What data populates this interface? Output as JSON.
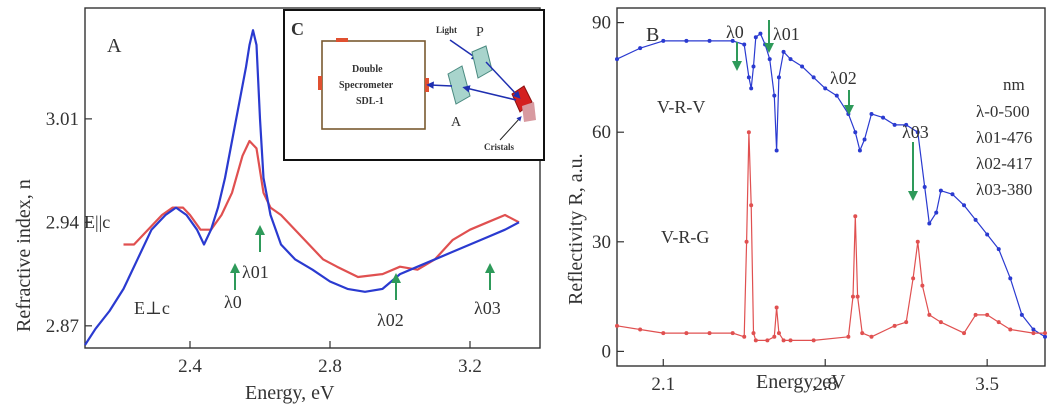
{
  "chart_data": [
    {
      "panel": "A",
      "type": "line",
      "xlabel": "Energy, eV",
      "ylabel": "Refractive index, n",
      "xlim": [
        2.1,
        3.4
      ],
      "ylim": [
        2.855,
        3.085
      ],
      "xticks": [
        "2.4",
        "2.8",
        "3.2"
      ],
      "yticks": [
        "2.87",
        "2.94",
        "3.01"
      ],
      "series": [
        {
          "name": "E||c",
          "color": "#e05050",
          "x": [
            2.21,
            2.24,
            2.28,
            2.32,
            2.35,
            2.38,
            2.4,
            2.43,
            2.46,
            2.49,
            2.52,
            2.55,
            2.57,
            2.59,
            2.6,
            2.61,
            2.63,
            2.66,
            2.7,
            2.74,
            2.78,
            2.82,
            2.88,
            2.95,
            3.0,
            3.05,
            3.1,
            3.15,
            3.2,
            3.25,
            3.3,
            3.34
          ],
          "y": [
            2.925,
            2.925,
            2.935,
            2.945,
            2.95,
            2.95,
            2.945,
            2.935,
            2.935,
            2.945,
            2.96,
            2.985,
            2.995,
            2.99,
            2.975,
            2.96,
            2.95,
            2.945,
            2.935,
            2.925,
            2.915,
            2.91,
            2.903,
            2.905,
            2.91,
            2.908,
            2.915,
            2.928,
            2.935,
            2.94,
            2.945,
            2.94
          ]
        },
        {
          "name": "E⊥c",
          "color": "#2a3ad0",
          "x": [
            2.1,
            2.13,
            2.17,
            2.21,
            2.25,
            2.29,
            2.33,
            2.36,
            2.39,
            2.42,
            2.44,
            2.46,
            2.48,
            2.5,
            2.52,
            2.54,
            2.56,
            2.57,
            2.58,
            2.59,
            2.6,
            2.61,
            2.63,
            2.66,
            2.7,
            2.75,
            2.8,
            2.85,
            2.9,
            2.95,
            3.0,
            3.05,
            3.1,
            3.15,
            3.2,
            3.25,
            3.3,
            3.34
          ],
          "y": [
            2.857,
            2.868,
            2.88,
            2.895,
            2.915,
            2.935,
            2.945,
            2.95,
            2.945,
            2.935,
            2.925,
            2.935,
            2.95,
            2.97,
            2.995,
            3.02,
            3.045,
            3.06,
            3.07,
            3.06,
            3.01,
            2.97,
            2.945,
            2.925,
            2.915,
            2.908,
            2.9,
            2.895,
            2.893,
            2.895,
            2.905,
            2.91,
            2.915,
            2.92,
            2.925,
            2.93,
            2.935,
            2.94
          ]
        }
      ],
      "labels": {
        "panel": "A",
        "epar": "E||c",
        "eperp": "E⊥c",
        "l0": "λ0",
        "l01": "λ01",
        "l02": "λ02",
        "l03": "λ03"
      }
    },
    {
      "panel": "B",
      "type": "line",
      "xlabel": "Energy, eV",
      "ylabel": "Reflectivity  R, a.u.",
      "xlim": [
        1.9,
        3.75
      ],
      "ylim": [
        -4,
        94
      ],
      "xticks": [
        "2.1",
        "2.8",
        "3.5"
      ],
      "yticks": [
        "0",
        "30",
        "60",
        "90"
      ],
      "series": [
        {
          "name": "V-R-V",
          "color": "#2a3ad0",
          "x": [
            1.9,
            2.0,
            2.1,
            2.2,
            2.3,
            2.4,
            2.45,
            2.47,
            2.48,
            2.49,
            2.5,
            2.52,
            2.54,
            2.56,
            2.58,
            2.59,
            2.6,
            2.62,
            2.65,
            2.7,
            2.75,
            2.8,
            2.85,
            2.9,
            2.93,
            2.95,
            2.97,
            3.0,
            3.05,
            3.1,
            3.15,
            3.2,
            3.23,
            3.25,
            3.28,
            3.3,
            3.35,
            3.4,
            3.45,
            3.5,
            3.55,
            3.6,
            3.65,
            3.7,
            3.75
          ],
          "y": [
            80,
            83,
            85,
            85,
            85,
            85,
            84,
            75,
            72,
            78,
            86,
            87,
            84,
            80,
            70,
            55,
            75,
            82,
            80,
            78,
            75,
            72,
            70,
            65,
            60,
            55,
            58,
            65,
            64,
            62,
            62,
            60,
            45,
            35,
            38,
            44,
            43,
            40,
            36,
            32,
            28,
            20,
            10,
            6,
            4
          ]
        },
        {
          "name": "V-R-G",
          "color": "#e05050",
          "x": [
            1.9,
            2.0,
            2.1,
            2.2,
            2.3,
            2.4,
            2.45,
            2.46,
            2.47,
            2.48,
            2.49,
            2.5,
            2.55,
            2.58,
            2.59,
            2.6,
            2.62,
            2.65,
            2.75,
            2.9,
            2.92,
            2.93,
            2.94,
            2.96,
            3.0,
            3.1,
            3.15,
            3.18,
            3.2,
            3.22,
            3.25,
            3.3,
            3.4,
            3.45,
            3.5,
            3.55,
            3.6,
            3.7,
            3.75
          ],
          "y": [
            7,
            6,
            5,
            5,
            5,
            5,
            4,
            30,
            60,
            40,
            5,
            3,
            3,
            4,
            12,
            5,
            3,
            3,
            3,
            4,
            15,
            37,
            15,
            5,
            4,
            7,
            8,
            20,
            30,
            18,
            10,
            8,
            5,
            10,
            10,
            8,
            6,
            5,
            5
          ]
        }
      ],
      "labels": {
        "panel": "B",
        "vrv": "V-R-V",
        "vrg": "V-R-G",
        "l0": "λ0",
        "l01": "λ01",
        "l02": "λ02",
        "l03": "λ03",
        "nm": "nm",
        "nm0": "λ-0-500",
        "nm01": "λ01-476",
        "nm02": "λ02-417",
        "nm03": "λ03-380"
      }
    }
  ],
  "inset": {
    "panel": "C",
    "spectrometer_line1": "Double",
    "spectrometer_line2": "Specrometer",
    "spectrometer_line3": "SDL-1",
    "light": "Light",
    "p": "P",
    "a": "A",
    "cristals": "Cristals"
  }
}
